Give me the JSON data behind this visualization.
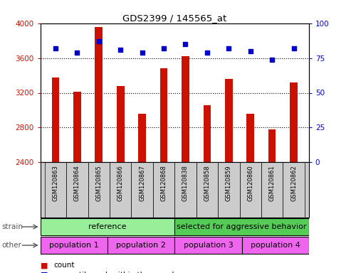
{
  "title": "GDS2399 / 145565_at",
  "samples": [
    "GSM120863",
    "GSM120864",
    "GSM120865",
    "GSM120866",
    "GSM120867",
    "GSM120868",
    "GSM120838",
    "GSM120858",
    "GSM120859",
    "GSM120860",
    "GSM120861",
    "GSM120862"
  ],
  "counts": [
    3380,
    3210,
    3960,
    3280,
    2960,
    3480,
    3620,
    3060,
    3360,
    2960,
    2780,
    3320
  ],
  "percentiles": [
    82,
    79,
    87,
    81,
    79,
    82,
    85,
    79,
    82,
    80,
    74,
    82
  ],
  "ylim_left": [
    2400,
    4000
  ],
  "ylim_right": [
    0,
    100
  ],
  "yticks_left": [
    2400,
    2800,
    3200,
    3600,
    4000
  ],
  "yticks_right": [
    0,
    25,
    50,
    75,
    100
  ],
  "bar_color": "#cc1100",
  "dot_color": "#0000cc",
  "bar_bottom": 2400,
  "strain_ref_color": "#99ee99",
  "strain_sel_color": "#55cc55",
  "other_color": "#ee66ee",
  "bg_color": "#ffffff",
  "tick_area_bg": "#cccccc",
  "grid_color": "#000000"
}
